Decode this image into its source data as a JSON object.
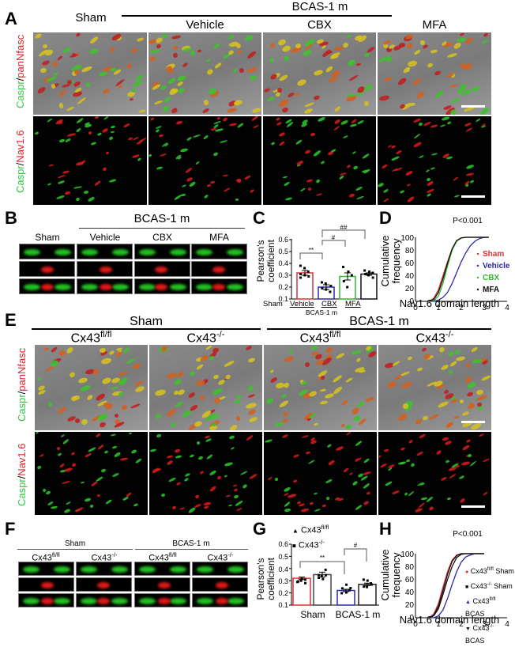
{
  "panelA": {
    "label": "A",
    "group_header": "BCAS-1 m",
    "columns": [
      "Sham",
      "Vehicle",
      "CBX",
      "MFA"
    ],
    "row_labels": [
      {
        "green": "Caspr",
        "sep": "/",
        "red": "panNfasc"
      },
      {
        "green": "Caspr",
        "sep": "/",
        "red": "Nav1.6"
      }
    ]
  },
  "panelB": {
    "label": "B",
    "group_header": "BCAS-1 m",
    "columns": [
      "Sham",
      "Vehicle",
      "CBX",
      "MFA"
    ]
  },
  "panelC": {
    "label": "C",
    "ylabel_line1": "Pearson's",
    "ylabel_line2": "coefficient",
    "yticks": [
      "0.6",
      "0.5",
      "0.4",
      "0.3",
      "0.2",
      "0.1"
    ],
    "xticks": [
      "Sham",
      "Vehicle",
      "CBX",
      "MFA"
    ],
    "group_label": "BCAS-1 m",
    "sig": [
      "**",
      "#",
      "##"
    ]
  },
  "panelD": {
    "label": "D",
    "pvalue": "P<0.001",
    "ylabel_line1": "Cumulative",
    "ylabel_line2": "frequency",
    "xlabel": "Nav1.6 domain length",
    "yticks": [
      "100",
      "80",
      "60",
      "40",
      "20",
      "0"
    ],
    "xticks": [
      "0",
      "1",
      "2",
      "3",
      "4"
    ],
    "legend": [
      {
        "name": "Sham",
        "color": "#e03030"
      },
      {
        "name": "Vehicle",
        "color": "#2a2aa8"
      },
      {
        "name": "CBX",
        "color": "#2db82d"
      },
      {
        "name": "MFA",
        "color": "#111111"
      }
    ]
  },
  "panelE": {
    "label": "E",
    "group_headers": [
      "Sham",
      "BCAS-1 m"
    ],
    "columns": [
      {
        "base": "Cx43",
        "sup": "fl/fl"
      },
      {
        "base": "Cx43",
        "sup": "-/-"
      },
      {
        "base": "Cx43",
        "sup": "fl/fl"
      },
      {
        "base": "Cx43",
        "sup": "-/-"
      }
    ],
    "row_labels": [
      {
        "green": "Caspr",
        "sep": "/",
        "red": "panNfasc"
      },
      {
        "green": "Caspr",
        "sep": "/",
        "red": "Nav1.6"
      }
    ]
  },
  "panelF": {
    "label": "F",
    "group_headers": [
      "Sham",
      "BCAS-1 m"
    ],
    "columns": [
      {
        "base": "Cx43",
        "sup": "fl/fl"
      },
      {
        "base": "Cx43",
        "sup": "-/-"
      },
      {
        "base": "Cx43",
        "sup": "fl/fl"
      },
      {
        "base": "Cx43",
        "sup": "-/-"
      }
    ]
  },
  "panelG": {
    "label": "G",
    "legend": [
      {
        "marker": "▲",
        "base": "Cx43",
        "sup": "fl/fl"
      },
      {
        "marker": "■",
        "base": "Cx43",
        "sup": "-/-"
      }
    ],
    "ylabel_line1": "Pearson's",
    "ylabel_line2": "coefficient",
    "yticks": [
      "0.6",
      "0.5",
      "0.4",
      "0.3",
      "0.2",
      "0.1"
    ],
    "xticks": [
      "Sham",
      "BCAS-1 m"
    ],
    "sig": [
      "**",
      "#"
    ]
  },
  "panelH": {
    "label": "H",
    "pvalue": "P<0.001",
    "ylabel_line1": "Cumulative",
    "ylabel_line2": "frequency",
    "xlabel": "Nav1.6 domain length",
    "yticks": [
      "100",
      "80",
      "60",
      "40",
      "20",
      "0"
    ],
    "xticks": [
      "0",
      "1",
      "2",
      "3",
      "4"
    ],
    "legend": [
      {
        "marker": "●",
        "base": "Cx43",
        "sup": "fl/fl",
        "suffix": " Sham",
        "color": "#e03030"
      },
      {
        "marker": "■",
        "base": "Cx43",
        "sup": "-/-",
        "suffix": " Sham",
        "color": "#111111"
      },
      {
        "marker": "▲",
        "base": "Cx43",
        "sup": "fl/fl",
        "suffix": " BCAS",
        "color": "#2a2aa8"
      },
      {
        "marker": "▼",
        "base": "Cx43",
        "sup": "-/-",
        "suffix": " BCAS",
        "color": "#111111"
      }
    ]
  },
  "chart_data": [
    {
      "id": "C",
      "type": "bar",
      "title": "",
      "xlabel": "BCAS-1 m (Vehicle, CBX, MFA)",
      "ylabel": "Pearson's coefficient",
      "categories": [
        "Sham",
        "Vehicle",
        "CBX",
        "MFA"
      ],
      "values": [
        0.32,
        0.2,
        0.29,
        0.31
      ],
      "errors": [
        0.02,
        0.02,
        0.03,
        0.01
      ],
      "bar_edge_colors": [
        "#e03030",
        "#2a2aa8",
        "#2db82d",
        "#111111"
      ],
      "points": [
        [
          0.38,
          0.36,
          0.33,
          0.31,
          0.3,
          0.29,
          0.28
        ],
        [
          0.24,
          0.23,
          0.21,
          0.19,
          0.18,
          0.16
        ],
        [
          0.37,
          0.33,
          0.3,
          0.25,
          0.2
        ],
        [
          0.34,
          0.33,
          0.32,
          0.31,
          0.3,
          0.28
        ]
      ],
      "ylim": [
        0.1,
        0.6
      ],
      "significance": [
        {
          "pair": [
            "Sham",
            "Vehicle"
          ],
          "label": "**"
        },
        {
          "pair": [
            "Vehicle",
            "CBX"
          ],
          "label": "#"
        },
        {
          "pair": [
            "Vehicle",
            "MFA"
          ],
          "label": "##"
        }
      ]
    },
    {
      "id": "D",
      "type": "line",
      "title": "P<0.001",
      "xlabel": "Nav1.6 domain length",
      "ylabel": "Cumulative frequency",
      "xlim": [
        0,
        4
      ],
      "ylim": [
        0,
        100
      ],
      "x": [
        0.6,
        0.8,
        1.0,
        1.2,
        1.4,
        1.6,
        1.8,
        2.0,
        2.2,
        2.4,
        2.6,
        2.8,
        3.0,
        3.2
      ],
      "series": [
        {
          "name": "Sham",
          "values": [
            0,
            5,
            18,
            40,
            62,
            82,
            95,
            99,
            100,
            100,
            100,
            100,
            100,
            100
          ]
        },
        {
          "name": "Vehicle",
          "values": [
            0,
            0,
            2,
            6,
            14,
            28,
            45,
            62,
            76,
            87,
            94,
            98,
            100,
            100
          ]
        },
        {
          "name": "CBX",
          "values": [
            0,
            1,
            8,
            28,
            55,
            80,
            94,
            99,
            100,
            100,
            100,
            100,
            100,
            100
          ]
        },
        {
          "name": "MFA",
          "values": [
            0,
            3,
            14,
            35,
            60,
            82,
            95,
            99,
            100,
            100,
            100,
            100,
            100,
            100
          ]
        }
      ],
      "legend_position": "right"
    },
    {
      "id": "G",
      "type": "bar",
      "title": "",
      "ylabel": "Pearson's coefficient",
      "categories": [
        "Sham Cx43fl/fl",
        "Sham Cx43-/-",
        "BCAS-1 m Cx43fl/fl",
        "BCAS-1 m Cx43-/-"
      ],
      "values": [
        0.32,
        0.35,
        0.22,
        0.27
      ],
      "errors": [
        0.01,
        0.02,
        0.01,
        0.01
      ],
      "bar_edge_colors": [
        "#e03030",
        "#444444",
        "#2a2aa8",
        "#222222"
      ],
      "ylim": [
        0.1,
        0.6
      ],
      "significance": [
        {
          "pair": [
            "Sham Cx43fl/fl",
            "BCAS-1 m Cx43fl/fl"
          ],
          "label": "**"
        },
        {
          "pair": [
            "BCAS-1 m Cx43fl/fl",
            "BCAS-1 m Cx43-/-"
          ],
          "label": "#"
        }
      ]
    },
    {
      "id": "H",
      "type": "line",
      "title": "P<0.001",
      "xlabel": "Nav1.6 domain length",
      "ylabel": "Cumulative frequency",
      "xlim": [
        0,
        4
      ],
      "ylim": [
        0,
        100
      ],
      "x": [
        0.6,
        0.8,
        1.0,
        1.2,
        1.4,
        1.6,
        1.8,
        2.0,
        2.2,
        2.4,
        2.6,
        2.8,
        3.0
      ],
      "series": [
        {
          "name": "Cx43fl/fl Sham",
          "values": [
            0,
            6,
            22,
            48,
            72,
            90,
            98,
            100,
            100,
            100,
            100,
            100,
            100
          ]
        },
        {
          "name": "Cx43-/- Sham",
          "values": [
            0,
            3,
            14,
            36,
            60,
            80,
            94,
            99,
            100,
            100,
            100,
            100,
            100
          ]
        },
        {
          "name": "Cx43fl/fl BCAS",
          "values": [
            0,
            0,
            3,
            12,
            30,
            52,
            72,
            87,
            95,
            98,
            100,
            100,
            100
          ]
        },
        {
          "name": "Cx43-/- BCAS",
          "values": [
            0,
            4,
            18,
            42,
            68,
            88,
            97,
            100,
            100,
            100,
            100,
            100,
            100
          ]
        }
      ],
      "legend_position": "right"
    }
  ]
}
